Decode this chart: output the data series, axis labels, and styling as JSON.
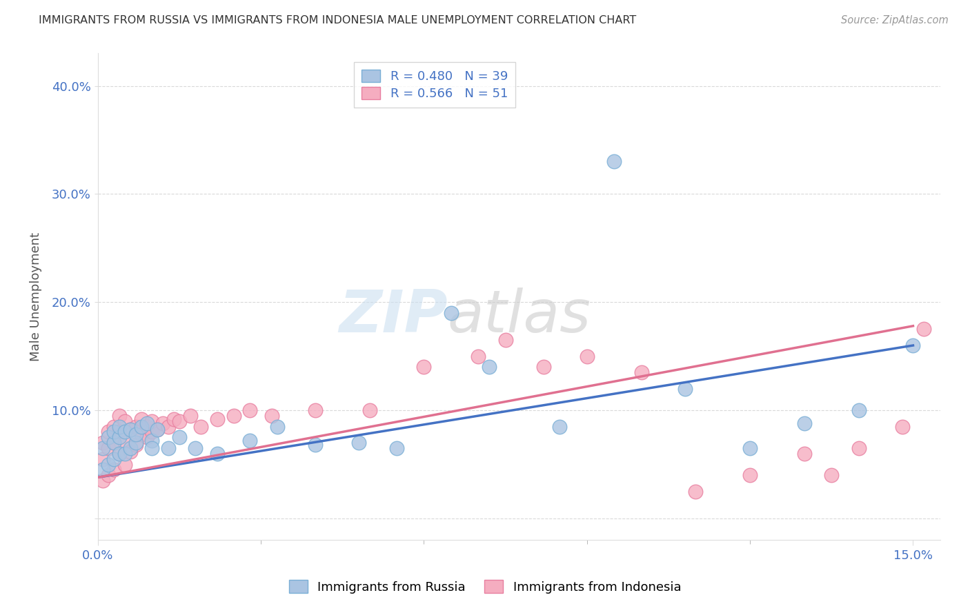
{
  "title": "IMMIGRANTS FROM RUSSIA VS IMMIGRANTS FROM INDONESIA MALE UNEMPLOYMENT CORRELATION CHART",
  "source": "Source: ZipAtlas.com",
  "ylabel": "Male Unemployment",
  "xlim": [
    0.0,
    0.155
  ],
  "ylim": [
    -0.02,
    0.43
  ],
  "xtick_positions": [
    0.0,
    0.15
  ],
  "xtick_labels": [
    "0.0%",
    "15.0%"
  ],
  "ytick_positions": [
    0.0,
    0.1,
    0.2,
    0.3,
    0.4
  ],
  "ytick_labels": [
    "",
    "10.0%",
    "20.0%",
    "30.0%",
    "40.0%"
  ],
  "russia_color": "#aac4e2",
  "russia_edge": "#7aafd6",
  "indonesia_color": "#f5adc0",
  "indonesia_edge": "#e87fa0",
  "russia_line_color": "#4472c4",
  "indonesia_line_color": "#e07090",
  "russia_R": 0.48,
  "russia_N": 39,
  "indonesia_R": 0.566,
  "indonesia_N": 51,
  "russia_scatter_x": [
    0.001,
    0.001,
    0.002,
    0.002,
    0.003,
    0.003,
    0.003,
    0.004,
    0.004,
    0.004,
    0.005,
    0.005,
    0.006,
    0.006,
    0.007,
    0.007,
    0.008,
    0.009,
    0.01,
    0.01,
    0.011,
    0.013,
    0.015,
    0.018,
    0.022,
    0.028,
    0.033,
    0.04,
    0.048,
    0.055,
    0.065,
    0.072,
    0.085,
    0.095,
    0.108,
    0.12,
    0.13,
    0.14,
    0.15
  ],
  "russia_scatter_y": [
    0.045,
    0.065,
    0.05,
    0.075,
    0.055,
    0.07,
    0.08,
    0.06,
    0.075,
    0.085,
    0.06,
    0.08,
    0.065,
    0.082,
    0.07,
    0.078,
    0.085,
    0.088,
    0.072,
    0.065,
    0.082,
    0.065,
    0.075,
    0.065,
    0.06,
    0.072,
    0.085,
    0.068,
    0.07,
    0.065,
    0.19,
    0.14,
    0.085,
    0.33,
    0.12,
    0.065,
    0.088,
    0.1,
    0.16
  ],
  "indonesia_scatter_x": [
    0.001,
    0.001,
    0.001,
    0.002,
    0.002,
    0.002,
    0.003,
    0.003,
    0.003,
    0.004,
    0.004,
    0.004,
    0.005,
    0.005,
    0.005,
    0.006,
    0.006,
    0.007,
    0.007,
    0.008,
    0.008,
    0.009,
    0.009,
    0.01,
    0.01,
    0.011,
    0.012,
    0.013,
    0.014,
    0.015,
    0.017,
    0.019,
    0.022,
    0.025,
    0.028,
    0.032,
    0.04,
    0.05,
    0.06,
    0.07,
    0.075,
    0.082,
    0.09,
    0.1,
    0.11,
    0.12,
    0.13,
    0.135,
    0.14,
    0.148,
    0.152
  ],
  "indonesia_scatter_y": [
    0.035,
    0.055,
    0.07,
    0.04,
    0.065,
    0.08,
    0.045,
    0.07,
    0.085,
    0.06,
    0.08,
    0.095,
    0.05,
    0.07,
    0.09,
    0.062,
    0.082,
    0.068,
    0.085,
    0.078,
    0.092,
    0.075,
    0.085,
    0.08,
    0.09,
    0.082,
    0.088,
    0.085,
    0.092,
    0.09,
    0.095,
    0.085,
    0.092,
    0.095,
    0.1,
    0.095,
    0.1,
    0.1,
    0.14,
    0.15,
    0.165,
    0.14,
    0.15,
    0.135,
    0.025,
    0.04,
    0.06,
    0.04,
    0.065,
    0.085,
    0.175
  ],
  "watermark_zip": "ZIP",
  "watermark_atlas": "atlas",
  "background_color": "#ffffff",
  "grid_color": "#d0d0d0",
  "title_color": "#333333",
  "axis_label_color": "#555555",
  "tick_color": "#4472c4"
}
